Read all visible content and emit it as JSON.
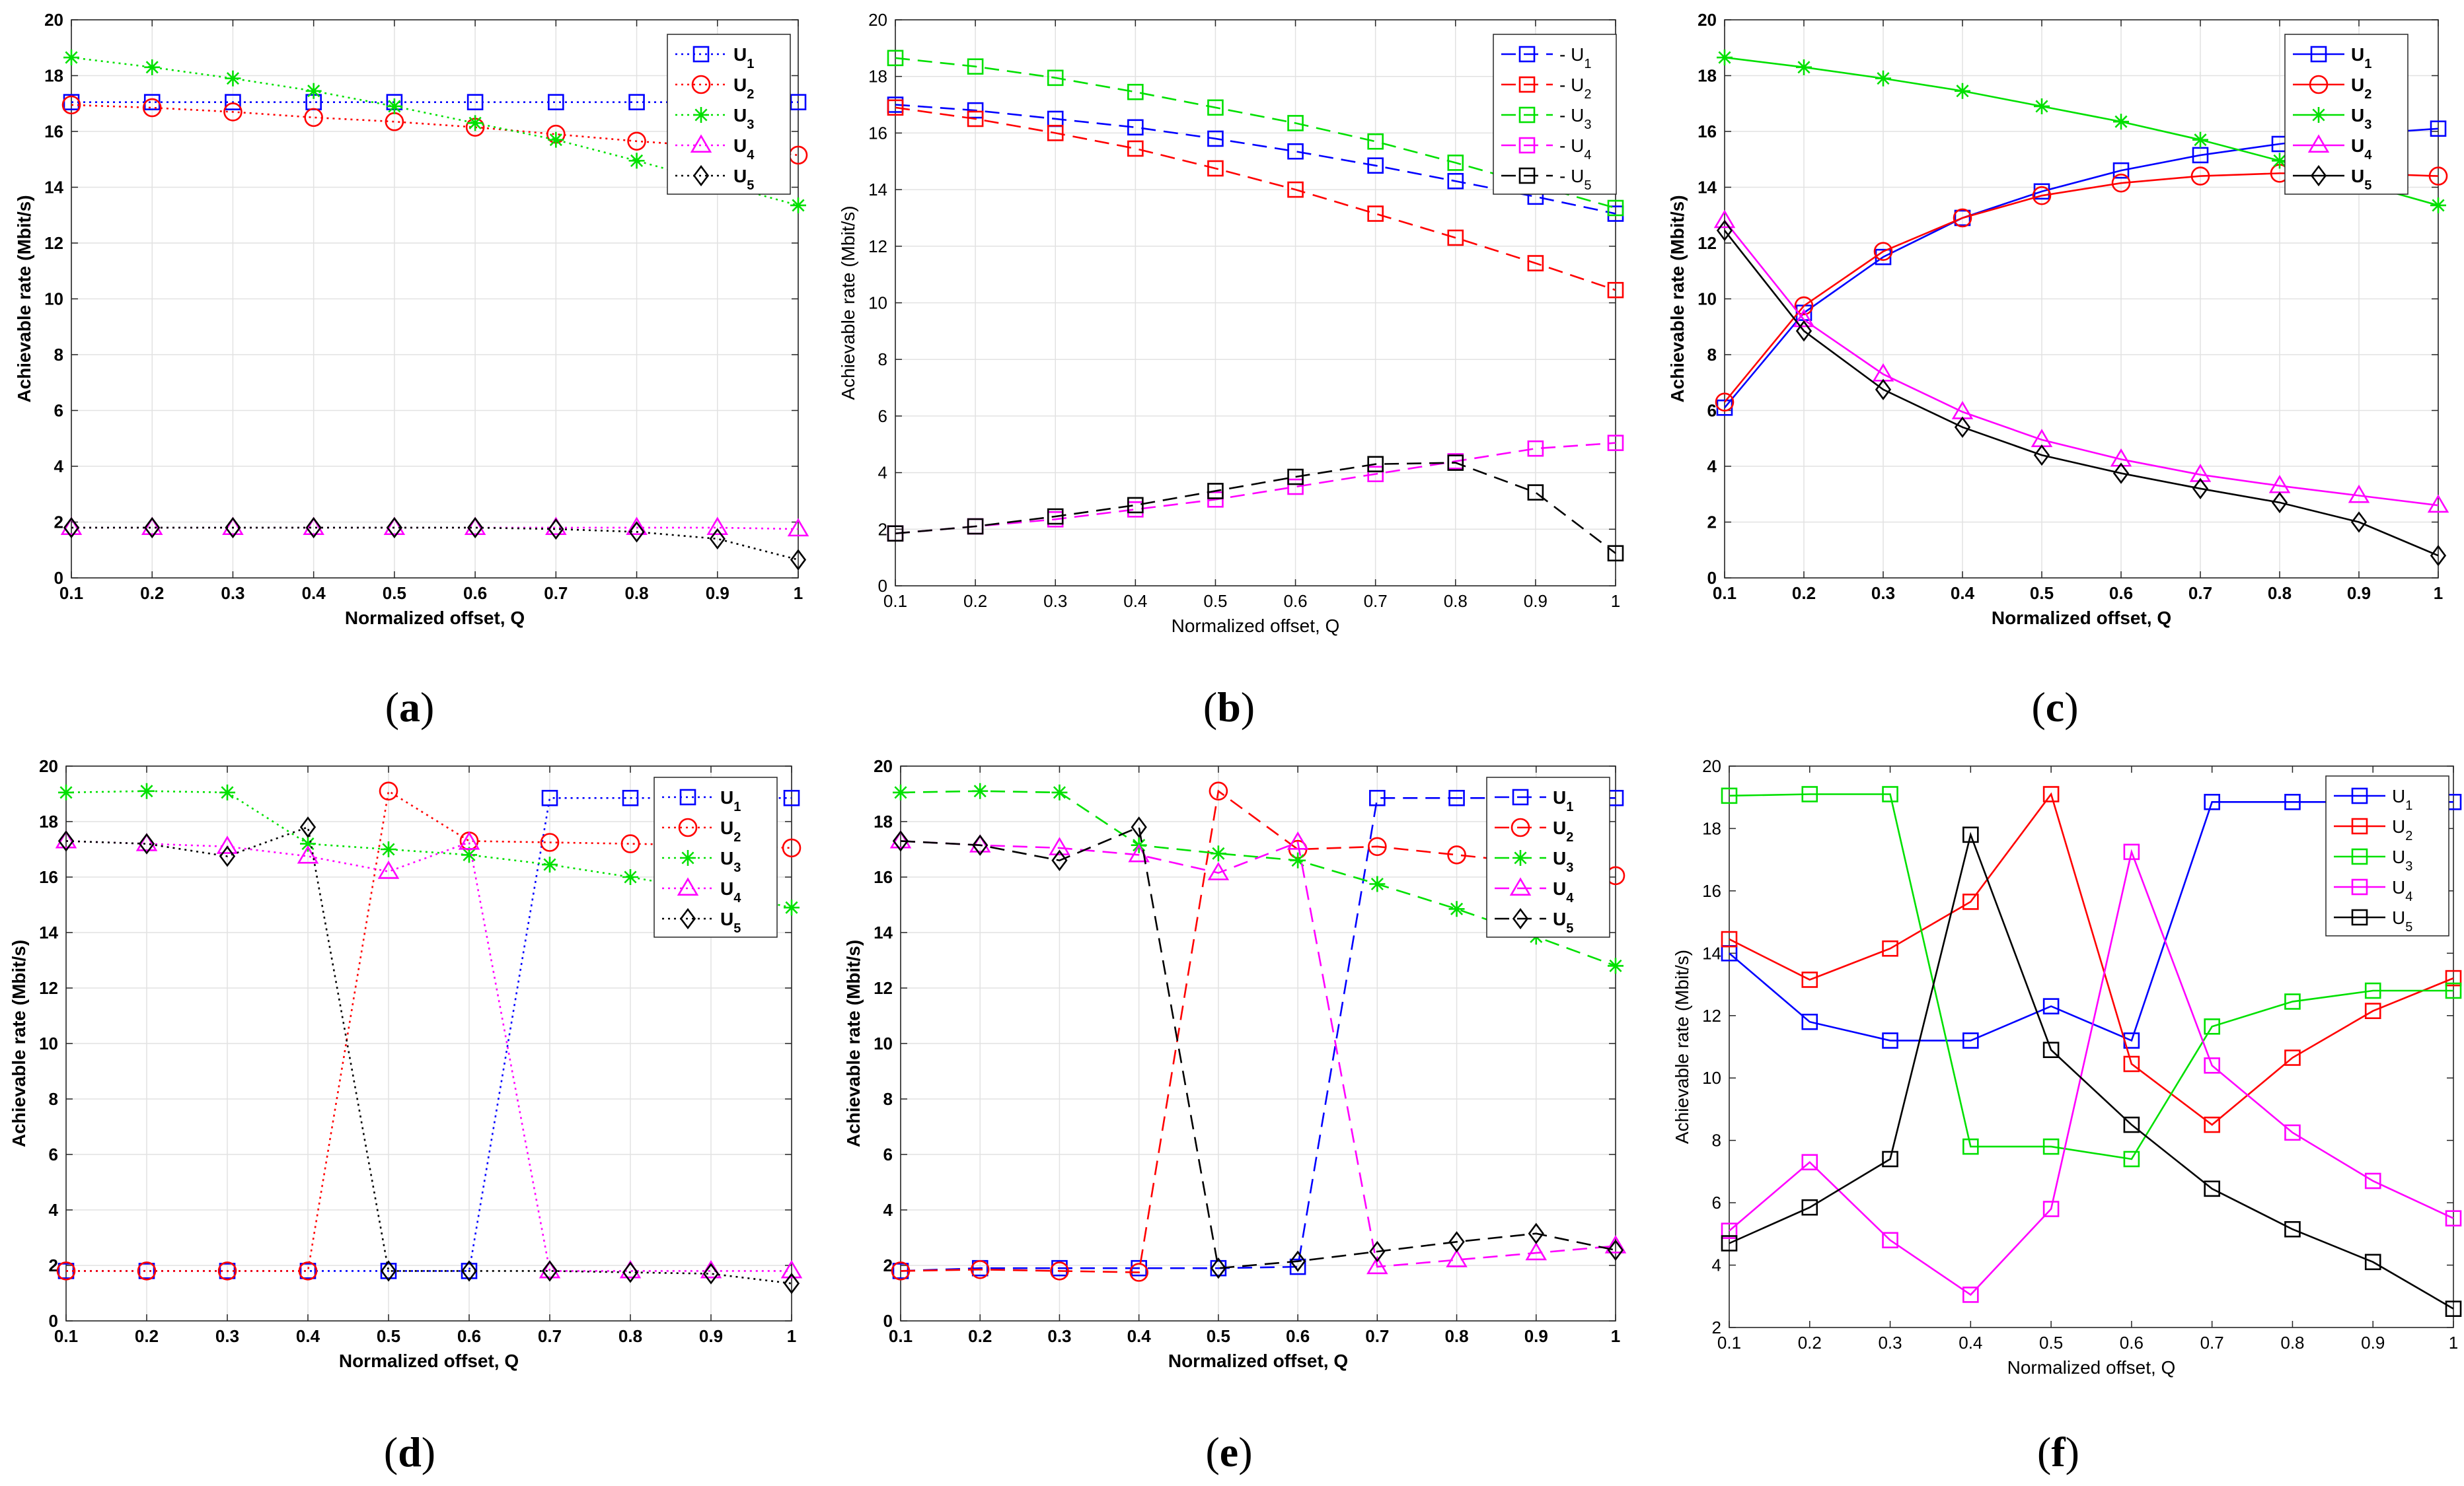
{
  "chart_data": [
    {
      "id": "a",
      "caption_letter": "a",
      "caption_open": "(",
      "caption_close": ")",
      "type": "line",
      "style": "dotted",
      "bold": true,
      "xlabel": "Normalized offset, Q",
      "ylabel": "Achievable rate (Mbit/s)",
      "x": [
        0.1,
        0.2,
        0.3,
        0.4,
        0.5,
        0.6,
        0.7,
        0.8,
        0.9,
        1
      ],
      "xticks": [
        "0.1",
        "0.2",
        "0.3",
        "0.4",
        "0.5",
        "0.6",
        "0.7",
        "0.8",
        "0.9",
        "1"
      ],
      "ylim": [
        0,
        20
      ],
      "yticks": [
        0,
        2,
        4,
        6,
        8,
        10,
        12,
        14,
        16,
        18,
        20
      ],
      "grid": true,
      "legend_position": "top-right",
      "series": [
        {
          "name": "U",
          "sub": "1",
          "color": "#0000ff",
          "marker": "square",
          "values": [
            17.05,
            17.05,
            17.05,
            17.05,
            17.05,
            17.05,
            17.05,
            17.05,
            17.05,
            17.05
          ]
        },
        {
          "name": "U",
          "sub": "2",
          "color": "#ff0000",
          "marker": "circle",
          "values": [
            16.95,
            16.85,
            16.7,
            16.5,
            16.35,
            16.15,
            15.9,
            15.65,
            15.45,
            15.15
          ]
        },
        {
          "name": "U",
          "sub": "3",
          "color": "#00e000",
          "marker": "star",
          "values": [
            18.65,
            18.3,
            17.9,
            17.45,
            16.9,
            16.3,
            15.7,
            14.95,
            14.15,
            13.35
          ]
        },
        {
          "name": "U",
          "sub": "4",
          "color": "#ff00ff",
          "marker": "triangle",
          "values": [
            1.8,
            1.8,
            1.8,
            1.8,
            1.8,
            1.8,
            1.8,
            1.8,
            1.8,
            1.75
          ]
        },
        {
          "name": "U",
          "sub": "5",
          "color": "#000000",
          "marker": "diamond",
          "values": [
            1.8,
            1.8,
            1.8,
            1.8,
            1.8,
            1.8,
            1.75,
            1.65,
            1.4,
            0.65
          ]
        }
      ]
    },
    {
      "id": "b",
      "caption_letter": "b",
      "caption_open": "(",
      "caption_close": ")",
      "type": "line",
      "style": "dashed",
      "bold": false,
      "xlabel": "Normalized offset, Q",
      "ylabel": "Achievable rate (Mbit/s)",
      "x": [
        0.1,
        0.2,
        0.3,
        0.4,
        0.5,
        0.6,
        0.7,
        0.8,
        0.9,
        1
      ],
      "xticks": [
        "0.1",
        "0.2",
        "0.3",
        "0.4",
        "0.5",
        "0.6",
        "0.7",
        "0.8",
        "0.9",
        "1"
      ],
      "ylim": [
        0,
        20
      ],
      "yticks": [
        0,
        2,
        4,
        6,
        8,
        10,
        12,
        14,
        16,
        18,
        20
      ],
      "grid": true,
      "legend_position": "top-right",
      "series": [
        {
          "name": "- U",
          "sub": "1",
          "color": "#0000ff",
          "marker": "square",
          "values": [
            17.0,
            16.8,
            16.5,
            16.2,
            15.8,
            15.35,
            14.85,
            14.3,
            13.75,
            13.15
          ]
        },
        {
          "name": "- U",
          "sub": "2",
          "color": "#ff0000",
          "marker": "square",
          "values": [
            16.9,
            16.5,
            16.0,
            15.45,
            14.75,
            14.0,
            13.15,
            12.3,
            11.4,
            10.45
          ]
        },
        {
          "name": "- U",
          "sub": "3",
          "color": "#00e000",
          "marker": "square",
          "values": [
            18.65,
            18.35,
            17.95,
            17.45,
            16.9,
            16.35,
            15.7,
            14.95,
            14.15,
            13.35
          ]
        },
        {
          "name": "- U",
          "sub": "4",
          "color": "#ff00ff",
          "marker": "square",
          "values": [
            1.85,
            2.1,
            2.35,
            2.7,
            3.05,
            3.5,
            3.95,
            4.4,
            4.85,
            5.05
          ]
        },
        {
          "name": "- U",
          "sub": "5",
          "color": "#000000",
          "marker": "square",
          "values": [
            1.85,
            2.1,
            2.45,
            2.85,
            3.35,
            3.85,
            4.3,
            4.35,
            3.3,
            1.15
          ]
        }
      ]
    },
    {
      "id": "c",
      "caption_letter": "c",
      "caption_open": "(",
      "caption_close": ")",
      "type": "line",
      "style": "solid",
      "bold": true,
      "xlabel": "Normalized offset, Q",
      "ylabel": "Achievable rate (Mbit/s)",
      "x": [
        0.1,
        0.2,
        0.3,
        0.4,
        0.5,
        0.6,
        0.7,
        0.8,
        0.9,
        1
      ],
      "xticks": [
        "0.1",
        "0.2",
        "0.3",
        "0.4",
        "0.5",
        "0.6",
        "0.7",
        "0.8",
        "0.9",
        "1"
      ],
      "ylim": [
        0,
        20
      ],
      "yticks": [
        0,
        2,
        4,
        6,
        8,
        10,
        12,
        14,
        16,
        18,
        20
      ],
      "grid": true,
      "legend_position": "top-right",
      "series": [
        {
          "name": "U",
          "sub": "1",
          "color": "#0000ff",
          "marker": "square",
          "values": [
            6.1,
            9.5,
            11.5,
            12.9,
            13.85,
            14.6,
            15.15,
            15.55,
            15.9,
            16.1
          ]
        },
        {
          "name": "U",
          "sub": "2",
          "color": "#ff0000",
          "marker": "circle",
          "values": [
            6.3,
            9.75,
            11.7,
            12.9,
            13.7,
            14.15,
            14.4,
            14.5,
            14.5,
            14.4
          ]
        },
        {
          "name": "U",
          "sub": "3",
          "color": "#00e000",
          "marker": "star",
          "values": [
            18.65,
            18.3,
            17.9,
            17.45,
            16.9,
            16.35,
            15.7,
            14.95,
            14.15,
            13.35
          ]
        },
        {
          "name": "U",
          "sub": "4",
          "color": "#ff00ff",
          "marker": "triangle",
          "values": [
            12.8,
            9.25,
            7.3,
            5.95,
            4.95,
            4.25,
            3.7,
            3.3,
            2.95,
            2.6
          ]
        },
        {
          "name": "U",
          "sub": "5",
          "color": "#000000",
          "marker": "diamond",
          "values": [
            12.45,
            8.85,
            6.75,
            5.4,
            4.4,
            3.75,
            3.2,
            2.7,
            2.0,
            0.8
          ]
        }
      ]
    },
    {
      "id": "d",
      "caption_letter": "d",
      "caption_open": "(",
      "caption_close": ")",
      "type": "line",
      "style": "dotted",
      "bold": true,
      "xlabel": "Normalized offset, Q",
      "ylabel": "Achievable rate (Mbit/s)",
      "x": [
        0.1,
        0.2,
        0.3,
        0.4,
        0.5,
        0.6,
        0.7,
        0.8,
        0.9,
        1
      ],
      "xticks": [
        "0.1",
        "0.2",
        "0.3",
        "0.4",
        "0.5",
        "0.6",
        "0.7",
        "0.8",
        "0.9",
        "1"
      ],
      "ylim": [
        0,
        20
      ],
      "yticks": [
        0,
        2,
        4,
        6,
        8,
        10,
        12,
        14,
        16,
        18,
        20
      ],
      "grid": true,
      "legend_position": "top-right",
      "series": [
        {
          "name": "U",
          "sub": "1",
          "color": "#0000ff",
          "marker": "square",
          "values": [
            1.8,
            1.8,
            1.8,
            1.8,
            1.8,
            1.8,
            18.85,
            18.85,
            18.85,
            18.85
          ]
        },
        {
          "name": "U",
          "sub": "2",
          "color": "#ff0000",
          "marker": "circle",
          "values": [
            1.8,
            1.8,
            1.8,
            1.8,
            19.1,
            17.3,
            17.25,
            17.2,
            17.15,
            17.05
          ]
        },
        {
          "name": "U",
          "sub": "3",
          "color": "#00e000",
          "marker": "star",
          "values": [
            19.05,
            19.1,
            19.05,
            17.2,
            17.0,
            16.8,
            16.45,
            16.0,
            15.5,
            14.9
          ]
        },
        {
          "name": "U",
          "sub": "4",
          "color": "#ff00ff",
          "marker": "triangle",
          "values": [
            17.3,
            17.2,
            17.1,
            16.75,
            16.2,
            17.25,
            1.8,
            1.8,
            1.8,
            1.8
          ]
        },
        {
          "name": "U",
          "sub": "5",
          "color": "#000000",
          "marker": "diamond",
          "values": [
            17.3,
            17.2,
            16.75,
            17.8,
            1.8,
            1.8,
            1.8,
            1.75,
            1.7,
            1.35
          ]
        }
      ]
    },
    {
      "id": "e",
      "caption_letter": "e",
      "caption_open": "(",
      "caption_close": ")",
      "type": "line",
      "style": "dashed",
      "bold": true,
      "xlabel": "Normalized offset, Q",
      "ylabel": "Achievable rate (Mbit/s)",
      "x": [
        0.1,
        0.2,
        0.3,
        0.4,
        0.5,
        0.6,
        0.7,
        0.8,
        0.9,
        1
      ],
      "xticks": [
        "0.1",
        "0.2",
        "0.3",
        "0.4",
        "0.5",
        "0.6",
        "0.7",
        "0.8",
        "0.9",
        "1"
      ],
      "ylim": [
        0,
        20
      ],
      "yticks": [
        0,
        2,
        4,
        6,
        8,
        10,
        12,
        14,
        16,
        18,
        20
      ],
      "grid": true,
      "legend_position": "top-right",
      "series": [
        {
          "name": "U",
          "sub": "1",
          "color": "#0000ff",
          "marker": "square",
          "values": [
            1.8,
            1.9,
            1.9,
            1.9,
            1.9,
            1.95,
            18.85,
            18.85,
            18.85,
            18.85
          ]
        },
        {
          "name": "U",
          "sub": "2",
          "color": "#ff0000",
          "marker": "circle",
          "values": [
            1.8,
            1.85,
            1.8,
            1.75,
            19.1,
            17.0,
            17.1,
            16.8,
            16.5,
            16.05
          ]
        },
        {
          "name": "U",
          "sub": "3",
          "color": "#00e000",
          "marker": "star",
          "values": [
            19.05,
            19.1,
            19.05,
            17.15,
            16.85,
            16.6,
            15.75,
            14.85,
            13.85,
            12.8
          ]
        },
        {
          "name": "U",
          "sub": "4",
          "color": "#ff00ff",
          "marker": "triangle",
          "values": [
            17.3,
            17.15,
            17.05,
            16.8,
            16.15,
            17.25,
            1.95,
            2.2,
            2.45,
            2.7
          ]
        },
        {
          "name": "U",
          "sub": "5",
          "color": "#000000",
          "marker": "diamond",
          "values": [
            17.3,
            17.15,
            16.6,
            17.8,
            1.9,
            2.15,
            2.5,
            2.85,
            3.15,
            2.55
          ]
        }
      ]
    },
    {
      "id": "f",
      "caption_letter": "f",
      "caption_open": "(",
      "caption_close": ")",
      "type": "line",
      "style": "solid",
      "bold": false,
      "xlabel": "Normalized offset, Q",
      "ylabel": "Achievable rate (Mbit/s)",
      "x": [
        0.1,
        0.2,
        0.3,
        0.4,
        0.5,
        0.6,
        0.7,
        0.8,
        0.9,
        1
      ],
      "xticks": [
        "0.1",
        "0.2",
        "0.3",
        "0.4",
        "0.5",
        "0.6",
        "0.7",
        "0.8",
        "0.9",
        "1"
      ],
      "ylim": [
        2,
        20
      ],
      "yticks": [
        2,
        4,
        6,
        8,
        10,
        12,
        14,
        16,
        18,
        20
      ],
      "grid": false,
      "legend_position": "top-right",
      "series": [
        {
          "name": "U",
          "sub": "1",
          "color": "#0000ff",
          "marker": "square",
          "values": [
            14.0,
            11.8,
            11.2,
            11.2,
            12.3,
            11.2,
            18.85,
            18.85,
            18.85,
            18.85
          ]
        },
        {
          "name": "U",
          "sub": "2",
          "color": "#ff0000",
          "marker": "square",
          "values": [
            14.45,
            13.15,
            14.15,
            15.65,
            19.1,
            10.45,
            8.5,
            10.65,
            12.15,
            13.2
          ]
        },
        {
          "name": "U",
          "sub": "3",
          "color": "#00e000",
          "marker": "square",
          "values": [
            19.05,
            19.1,
            19.1,
            7.8,
            7.8,
            7.4,
            11.65,
            12.45,
            12.8,
            12.8
          ]
        },
        {
          "name": "U",
          "sub": "4",
          "color": "#ff00ff",
          "marker": "square",
          "values": [
            5.1,
            7.3,
            4.8,
            3.05,
            5.8,
            17.25,
            10.4,
            8.25,
            6.7,
            5.5
          ]
        },
        {
          "name": "U",
          "sub": "5",
          "color": "#000000",
          "marker": "square",
          "values": [
            4.7,
            5.85,
            7.4,
            17.8,
            10.9,
            8.5,
            6.45,
            5.15,
            4.1,
            2.6
          ]
        }
      ]
    }
  ]
}
